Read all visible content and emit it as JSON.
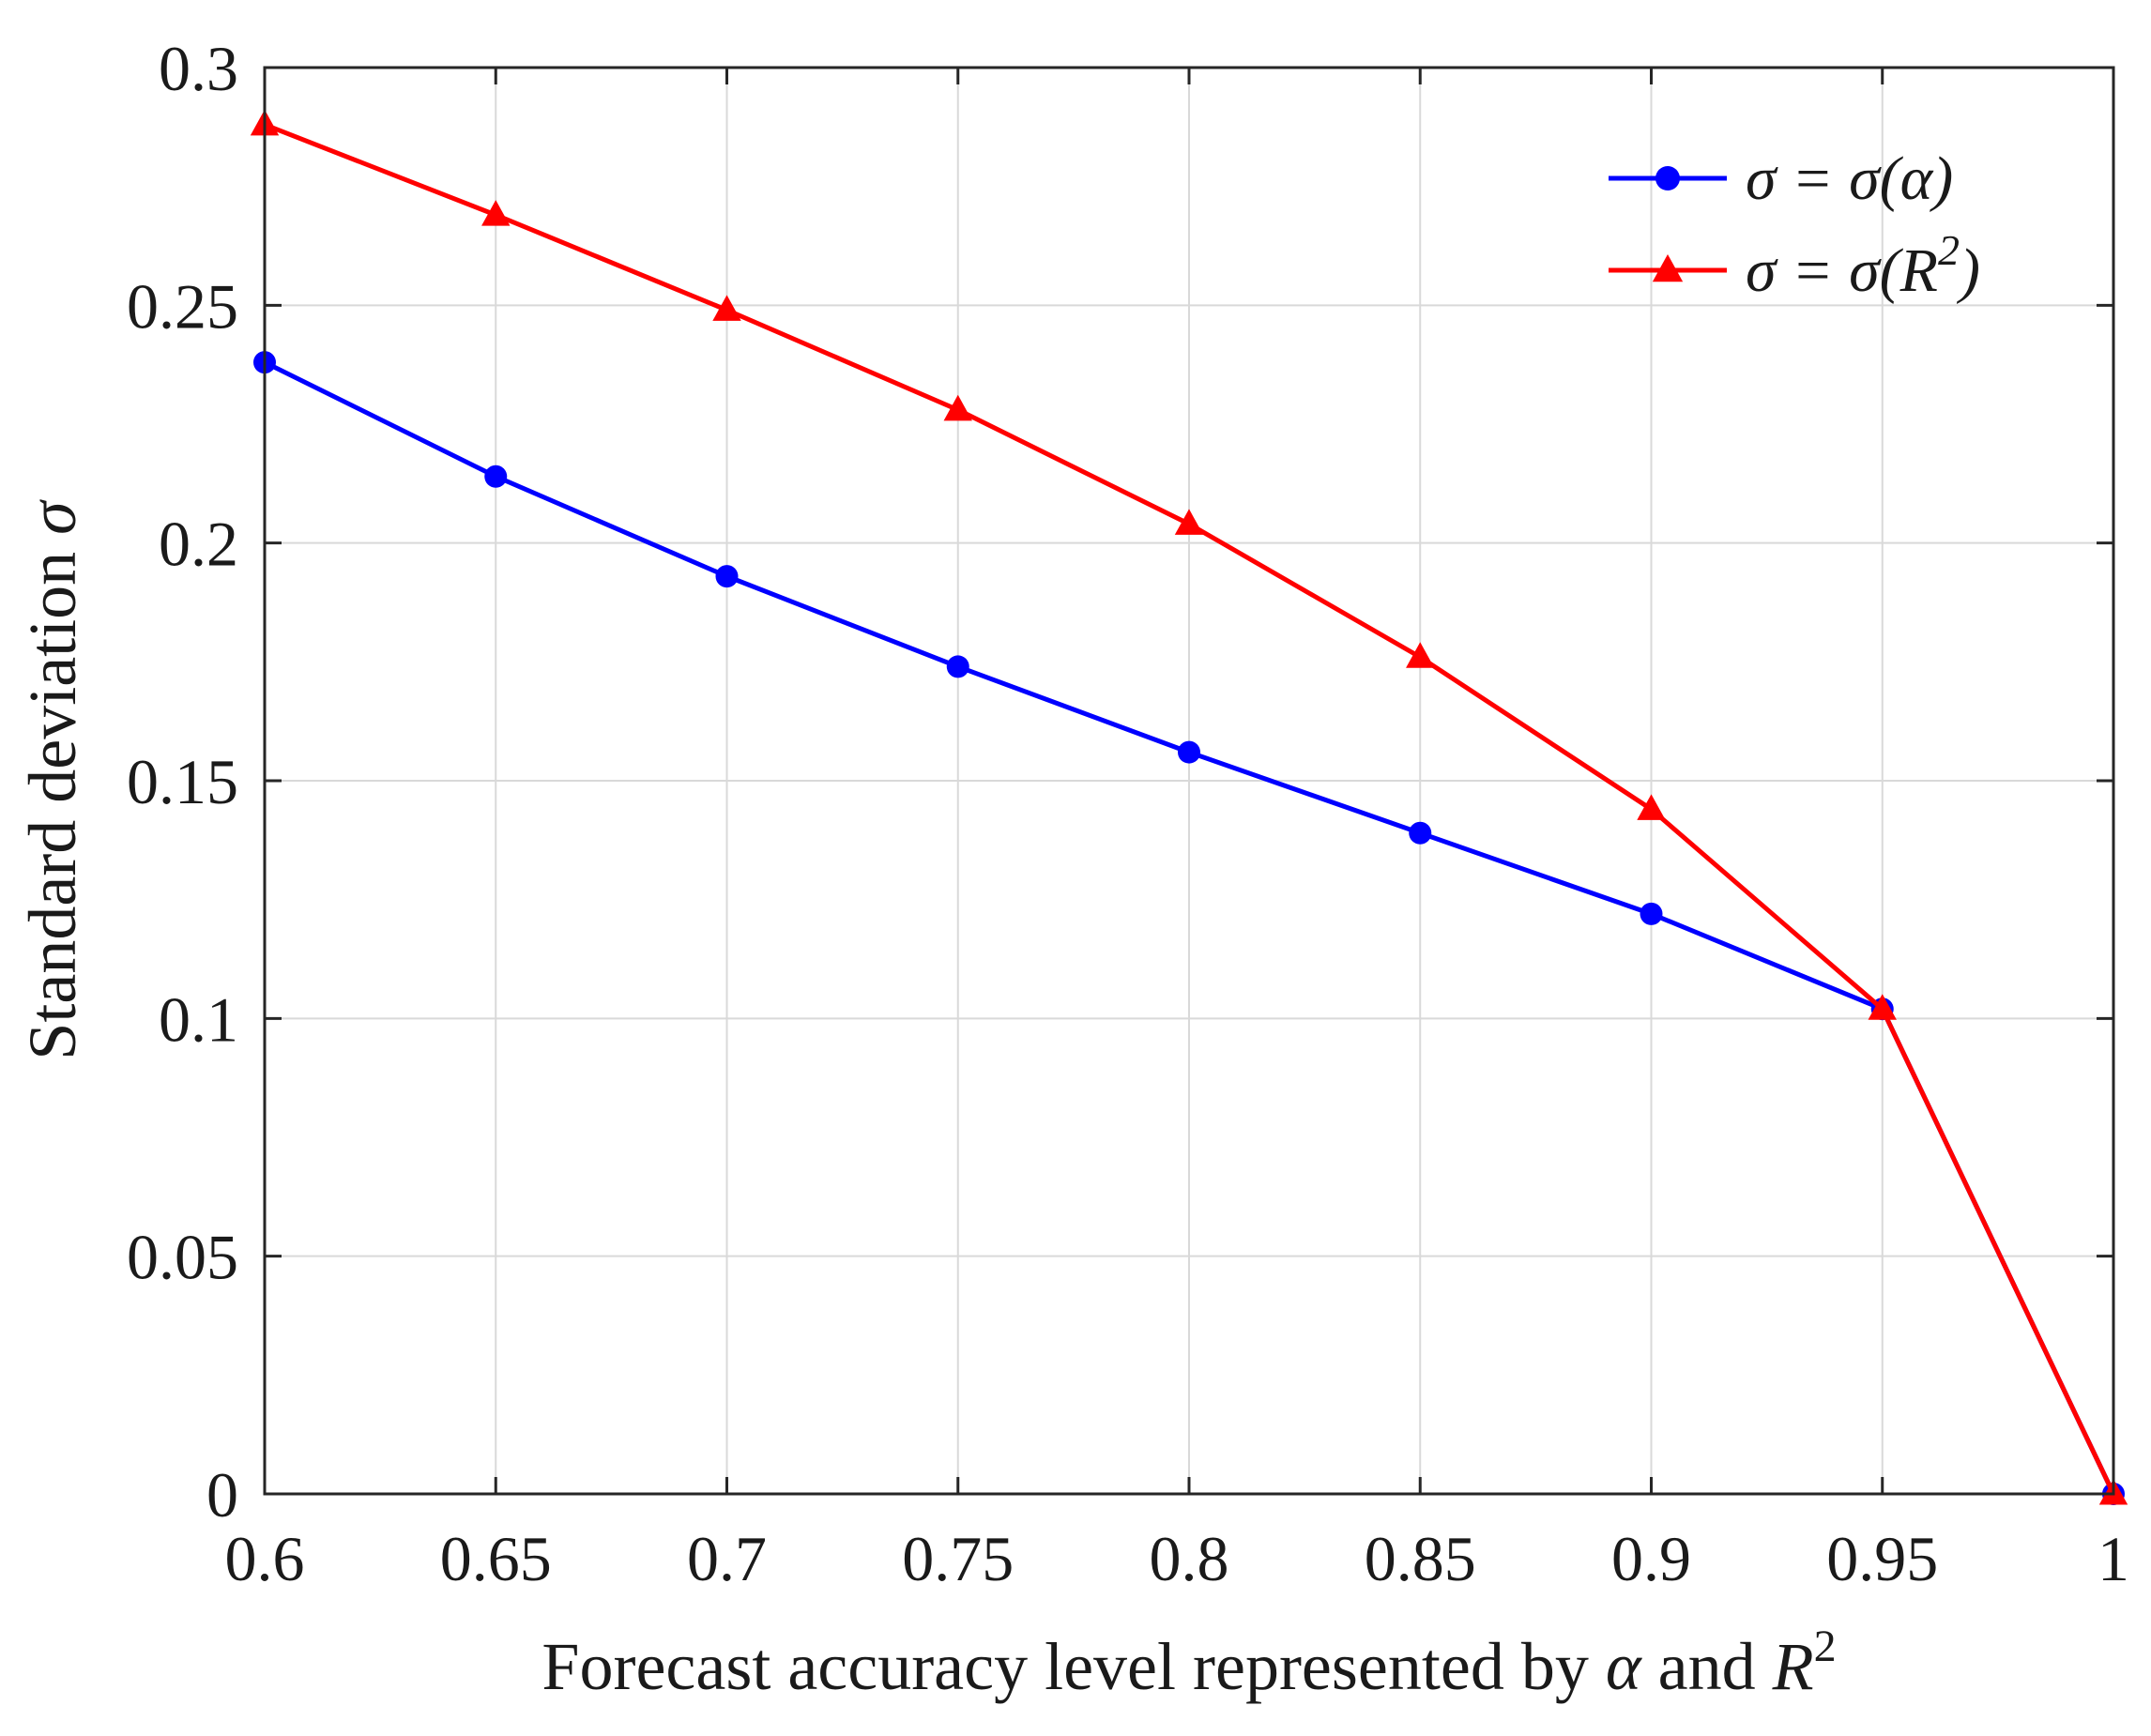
{
  "chart_data": {
    "type": "line",
    "title": "",
    "xlabel": "Forecast accuracy level represented by α and R²",
    "xlabel_parts": {
      "prefix": "Forecast accuracy level represented by ",
      "alpha": "α",
      "middle": " and ",
      "r": "R",
      "sup": "2"
    },
    "ylabel": "Standard deviation σ",
    "ylabel_parts": {
      "prefix": "Standard deviation ",
      "sigma": "σ"
    },
    "xlim": [
      0.6,
      1
    ],
    "ylim": [
      0,
      0.3
    ],
    "grid": true,
    "legend_position": "top-right",
    "x": [
      0.6,
      0.65,
      0.7,
      0.75,
      0.8,
      0.85,
      0.9,
      0.95,
      1
    ],
    "x_tick_labels": [
      "0.6",
      "0.65",
      "0.7",
      "0.75",
      "0.8",
      "0.85",
      "0.9",
      "0.95",
      "1"
    ],
    "y_ticks": [
      0,
      0.05,
      0.1,
      0.15,
      0.2,
      0.25,
      0.3
    ],
    "y_tick_labels": [
      "0",
      "0.05",
      "0.1",
      "0.15",
      "0.2",
      "0.25",
      "0.3"
    ],
    "series": [
      {
        "name": "σ = σ(α)",
        "legend_main": "σ = σ(α)",
        "legend_sup": "",
        "legend_tail": "",
        "color": "#0000ff",
        "marker": "circle",
        "values": [
          0.238,
          0.214,
          0.193,
          0.174,
          0.156,
          0.139,
          0.122,
          0.102,
          0.0
        ]
      },
      {
        "name": "σ = σ(R²)",
        "legend_main": "σ = σ(R",
        "legend_sup": "2",
        "legend_tail": ")",
        "color": "#ff0000",
        "marker": "triangle",
        "values": [
          0.288,
          0.269,
          0.249,
          0.228,
          0.204,
          0.176,
          0.144,
          0.102,
          0.0
        ]
      }
    ]
  }
}
